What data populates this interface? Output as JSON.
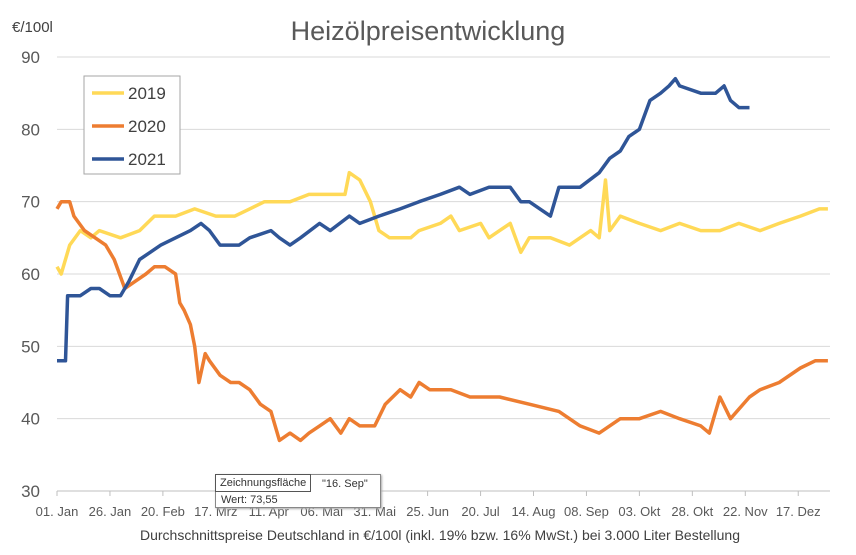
{
  "chart_data": {
    "type": "line",
    "title": "Heizölpreisentwicklung",
    "ylabel": "€/100l",
    "xlabel": "Durchschnittspreise Deutschland in €/100l (inkl. 19% bzw. 16%  MwSt.) bei 3.000 Liter Bestellung",
    "ylim": [
      30,
      90
    ],
    "yticks": [
      "30",
      "40",
      "50",
      "60",
      "70",
      "80",
      "90"
    ],
    "xlim_days": [
      0,
      365
    ],
    "xticks": [
      "01. Jan",
      "26. Jan",
      "20. Feb",
      "17. Mrz",
      "11. Apr",
      "06. Mai",
      "31. Mai",
      "25. Jun",
      "20. Jul",
      "14. Aug",
      "08. Sep",
      "03. Okt",
      "28. Okt",
      "22. Nov",
      "17. Dez"
    ],
    "grid": true,
    "legend_position": "top-left",
    "series": [
      {
        "name": "2019",
        "color": "#FFD957",
        "points": [
          [
            0,
            61
          ],
          [
            2,
            60
          ],
          [
            6,
            64
          ],
          [
            11,
            66
          ],
          [
            16,
            65
          ],
          [
            20,
            66
          ],
          [
            30,
            65
          ],
          [
            39,
            66
          ],
          [
            46,
            68
          ],
          [
            56,
            68
          ],
          [
            65,
            69
          ],
          [
            75,
            68
          ],
          [
            84,
            68
          ],
          [
            91,
            69
          ],
          [
            98,
            70
          ],
          [
            110,
            70
          ],
          [
            119,
            71
          ],
          [
            129,
            71
          ],
          [
            136,
            71
          ],
          [
            138,
            74
          ],
          [
            143,
            73
          ],
          [
            148,
            70
          ],
          [
            152,
            66
          ],
          [
            157,
            65
          ],
          [
            167,
            65
          ],
          [
            171,
            66
          ],
          [
            181,
            67
          ],
          [
            186,
            68
          ],
          [
            190,
            66
          ],
          [
            200,
            67
          ],
          [
            204,
            65
          ],
          [
            209,
            66
          ],
          [
            214,
            67
          ],
          [
            219,
            63
          ],
          [
            223,
            65
          ],
          [
            233,
            65
          ],
          [
            242,
            64
          ],
          [
            252,
            66
          ],
          [
            256,
            65
          ],
          [
            259,
            73
          ],
          [
            261,
            66
          ],
          [
            266,
            68
          ],
          [
            275,
            67
          ],
          [
            285,
            66
          ],
          [
            294,
            67
          ],
          [
            304,
            66
          ],
          [
            313,
            66
          ],
          [
            322,
            67
          ],
          [
            332,
            66
          ],
          [
            341,
            67
          ],
          [
            351,
            68
          ],
          [
            360,
            69
          ],
          [
            364,
            69
          ]
        ]
      },
      {
        "name": "2020",
        "color": "#ED7D31",
        "points": [
          [
            0,
            69
          ],
          [
            2,
            70
          ],
          [
            6,
            70
          ],
          [
            8,
            68
          ],
          [
            13,
            66
          ],
          [
            18,
            65
          ],
          [
            23,
            64
          ],
          [
            27,
            62
          ],
          [
            32,
            58
          ],
          [
            37,
            59
          ],
          [
            42,
            60
          ],
          [
            46,
            61
          ],
          [
            51,
            61
          ],
          [
            56,
            60
          ],
          [
            58,
            56
          ],
          [
            60,
            55
          ],
          [
            63,
            53
          ],
          [
            65,
            50
          ],
          [
            67,
            45
          ],
          [
            70,
            49
          ],
          [
            72,
            48
          ],
          [
            77,
            46
          ],
          [
            82,
            45
          ],
          [
            86,
            45
          ],
          [
            91,
            44
          ],
          [
            96,
            42
          ],
          [
            101,
            41
          ],
          [
            105,
            37
          ],
          [
            110,
            38
          ],
          [
            115,
            37
          ],
          [
            119,
            38
          ],
          [
            124,
            39
          ],
          [
            129,
            40
          ],
          [
            134,
            38
          ],
          [
            138,
            40
          ],
          [
            143,
            39
          ],
          [
            150,
            39
          ],
          [
            155,
            42
          ],
          [
            162,
            44
          ],
          [
            167,
            43
          ],
          [
            171,
            45
          ],
          [
            176,
            44
          ],
          [
            186,
            44
          ],
          [
            195,
            43
          ],
          [
            209,
            43
          ],
          [
            223,
            42
          ],
          [
            237,
            41
          ],
          [
            247,
            39
          ],
          [
            256,
            38
          ],
          [
            266,
            40
          ],
          [
            275,
            40
          ],
          [
            285,
            41
          ],
          [
            294,
            40
          ],
          [
            304,
            39
          ],
          [
            308,
            38
          ],
          [
            313,
            43
          ],
          [
            318,
            40
          ],
          [
            327,
            43
          ],
          [
            332,
            44
          ],
          [
            341,
            45
          ],
          [
            351,
            47
          ],
          [
            358,
            48
          ],
          [
            364,
            48
          ]
        ]
      },
      {
        "name": "2021",
        "color": "#2F5597",
        "points": [
          [
            0,
            48
          ],
          [
            4,
            48
          ],
          [
            5,
            57
          ],
          [
            11,
            57
          ],
          [
            16,
            58
          ],
          [
            20,
            58
          ],
          [
            25,
            57
          ],
          [
            30,
            57
          ],
          [
            34,
            59
          ],
          [
            39,
            62
          ],
          [
            44,
            63
          ],
          [
            49,
            64
          ],
          [
            56,
            65
          ],
          [
            63,
            66
          ],
          [
            68,
            67
          ],
          [
            72,
            66
          ],
          [
            77,
            64
          ],
          [
            86,
            64
          ],
          [
            91,
            65
          ],
          [
            101,
            66
          ],
          [
            105,
            65
          ],
          [
            110,
            64
          ],
          [
            115,
            65
          ],
          [
            124,
            67
          ],
          [
            129,
            66
          ],
          [
            138,
            68
          ],
          [
            143,
            67
          ],
          [
            152,
            68
          ],
          [
            162,
            69
          ],
          [
            171,
            70
          ],
          [
            181,
            71
          ],
          [
            190,
            72
          ],
          [
            195,
            71
          ],
          [
            204,
            72
          ],
          [
            214,
            72
          ],
          [
            219,
            70
          ],
          [
            223,
            70
          ],
          [
            228,
            69
          ],
          [
            233,
            68
          ],
          [
            237,
            72
          ],
          [
            247,
            72
          ],
          [
            256,
            74
          ],
          [
            261,
            76
          ],
          [
            266,
            77
          ],
          [
            270,
            79
          ],
          [
            275,
            80
          ],
          [
            280,
            84
          ],
          [
            285,
            85
          ],
          [
            289,
            86
          ],
          [
            292,
            87
          ],
          [
            294,
            86
          ],
          [
            304,
            85
          ],
          [
            311,
            85
          ],
          [
            315,
            86
          ],
          [
            318,
            84
          ],
          [
            322,
            83
          ],
          [
            327,
            83
          ]
        ]
      }
    ]
  },
  "tooltip": {
    "label": "Zeichnungsfläche",
    "point": "\"16. Sep\"",
    "value": "Wert: 73,55"
  }
}
